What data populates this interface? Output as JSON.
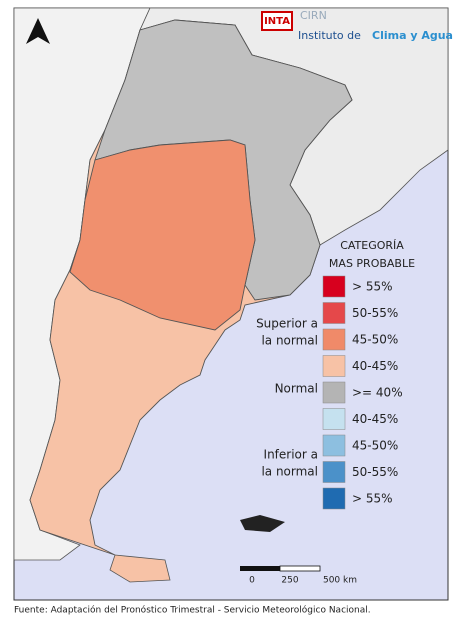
{
  "header": {
    "logo": "INTA",
    "center": "CIRN",
    "institute_prefix": "Instituto de",
    "institute_name": "Clima y Agua"
  },
  "legend": {
    "title_line1": "CATEGORÍA",
    "title_line2": "MAS PROBABLE",
    "groups": [
      {
        "line1": "Superior a",
        "line2": "la normal"
      },
      {
        "line1": "Normal"
      },
      {
        "line1": "Inferior a",
        "line2": "la normal"
      }
    ],
    "items": [
      {
        "label": "> 55%",
        "color": "#d7001e"
      },
      {
        "label": "50-55%",
        "color": "#e5484a"
      },
      {
        "label": "45-50%",
        "color": "#f08a69"
      },
      {
        "label": "40-45%",
        "color": "#f7c2a6"
      },
      {
        "label": ">= 40%",
        "color": "#b4b4b4"
      },
      {
        "label": "40-45%",
        "color": "#c5e1ef"
      },
      {
        "label": "45-50%",
        "color": "#8dbfe0"
      },
      {
        "label": "50-55%",
        "color": "#4b91c9"
      },
      {
        "label": "> 55%",
        "color": "#1f6bb1"
      }
    ]
  },
  "scale": {
    "labels": [
      "0",
      "250",
      "500 km"
    ]
  },
  "footer": "Fuente: Adaptación del Pronóstico Trimestral - Servicio Meteorológico Nacional."
}
